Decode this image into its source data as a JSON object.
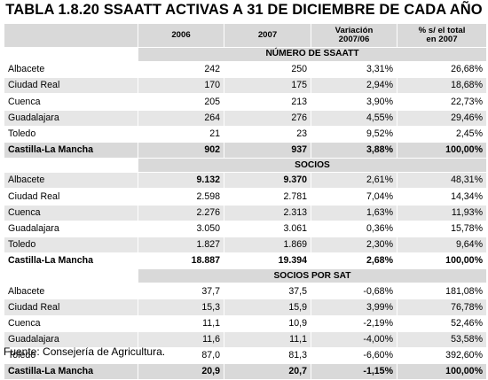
{
  "title": "TABLA 1.8.20 SSAATT ACTIVAS A 31 DE DICIEMBRE DE CADA AÑO",
  "columns": {
    "col_2006": "2006",
    "col_2007": "2007",
    "variation_line1": "Variación",
    "variation_line2": "2007/06",
    "share_line1": "% s/ el total",
    "share_line2": "en 2007"
  },
  "sections": [
    {
      "heading": "NÚMERO DE SSAATT",
      "rows": [
        {
          "name": "Albacete",
          "v2006": "242",
          "v2007": "250",
          "variation": "3,31%",
          "share": "26,68%"
        },
        {
          "name": "Ciudad Real",
          "v2006": "170",
          "v2007": "175",
          "variation": "2,94%",
          "share": "18,68%"
        },
        {
          "name": "Cuenca",
          "v2006": "205",
          "v2007": "213",
          "variation": "3,90%",
          "share": "22,73%"
        },
        {
          "name": "Guadalajara",
          "v2006": "264",
          "v2007": "276",
          "variation": "4,55%",
          "share": "29,46%"
        },
        {
          "name": "Toledo",
          "v2006": "21",
          "v2007": "23",
          "variation": "9,52%",
          "share": "2,45%"
        }
      ],
      "total": {
        "name": "Castilla-La Mancha",
        "v2006": "902",
        "v2007": "937",
        "variation": "3,88%",
        "share": "100,00%"
      }
    },
    {
      "heading": "SOCIOS",
      "rows": [
        {
          "name": "Albacete",
          "v2006": "9.132",
          "v2007": "9.370",
          "variation": "2,61%",
          "share": "48,31%"
        },
        {
          "name": "Ciudad Real",
          "v2006": "2.598",
          "v2007": "2.781",
          "variation": "7,04%",
          "share": "14,34%"
        },
        {
          "name": "Cuenca",
          "v2006": "2.276",
          "v2007": "2.313",
          "variation": "1,63%",
          "share": "11,93%"
        },
        {
          "name": "Guadalajara",
          "v2006": "3.050",
          "v2007": "3.061",
          "variation": "0,36%",
          "share": "15,78%"
        },
        {
          "name": "Toledo",
          "v2006": "1.827",
          "v2007": "1.869",
          "variation": "2,30%",
          "share": "9,64%"
        }
      ],
      "total": {
        "name": "Castilla-La Mancha",
        "v2006": "18.887",
        "v2007": "19.394",
        "variation": "2,68%",
        "share": "100,00%"
      }
    },
    {
      "heading": "SOCIOS POR SAT",
      "rows": [
        {
          "name": "Albacete",
          "v2006": "37,7",
          "v2007": "37,5",
          "variation": "-0,68%",
          "share": "181,08%"
        },
        {
          "name": "Ciudad Real",
          "v2006": "15,3",
          "v2007": "15,9",
          "variation": "3,99%",
          "share": "76,78%"
        },
        {
          "name": "Cuenca",
          "v2006": "11,1",
          "v2007": "10,9",
          "variation": "-2,19%",
          "share": "52,46%"
        },
        {
          "name": "Guadalajara",
          "v2006": "11,6",
          "v2007": "11,1",
          "variation": "-4,00%",
          "share": "53,58%"
        },
        {
          "name": "Toledo",
          "v2006": "87,0",
          "v2007": "81,3",
          "variation": "-6,60%",
          "share": "392,60%"
        }
      ],
      "total": {
        "name": "Castilla-La Mancha",
        "v2006": "20,9",
        "v2007": "20,7",
        "variation": "-1,15%",
        "share": "100,00%"
      }
    }
  ],
  "source": "Fuente: Consejería de Agricultura."
}
